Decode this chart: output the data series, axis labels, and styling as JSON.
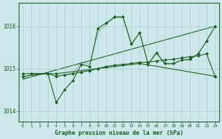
{
  "title": "Graphe pression niveau de la mer (hPa)",
  "bg_color": "#cce8ea",
  "grid_color": "#aacccc",
  "line_color": "#1a5c1a",
  "xlim": [
    -0.5,
    23.5
  ],
  "ylim": [
    1013.75,
    1016.55
  ],
  "yticks": [
    1014,
    1015,
    1016
  ],
  "xticks": [
    0,
    1,
    2,
    3,
    4,
    5,
    6,
    7,
    8,
    9,
    10,
    11,
    12,
    13,
    14,
    15,
    16,
    17,
    18,
    19,
    20,
    21,
    22,
    23
  ],
  "series_dotted": {
    "x": [
      0,
      1,
      2,
      3,
      4,
      5,
      6,
      7,
      8,
      9,
      10,
      11,
      12,
      13,
      14,
      15,
      16,
      17,
      18,
      19,
      20,
      21,
      22,
      23
    ],
    "y": [
      1014.75,
      1014.88,
      1014.88,
      1014.88,
      1014.82,
      1014.85,
      1014.9,
      1015.15,
      1015.1,
      1015.85,
      1016.05,
      1016.2,
      1016.2,
      1015.55,
      1015.85,
      1015.1,
      1015.35,
      1015.1,
      1015.1,
      1015.2,
      1015.2,
      1015.35,
      1015.65,
      1016.0
    ]
  },
  "series_main": {
    "x": [
      1,
      3,
      4,
      5,
      6,
      7,
      8,
      9,
      10,
      11,
      12,
      13,
      14,
      15,
      16,
      17,
      18,
      19,
      20,
      21,
      22,
      23
    ],
    "y": [
      1014.88,
      1014.88,
      1014.2,
      1014.5,
      1014.72,
      1015.1,
      1015.05,
      1015.95,
      1016.08,
      1016.22,
      1016.22,
      1015.58,
      1015.85,
      1015.1,
      1015.38,
      1015.12,
      1015.12,
      1015.2,
      1015.22,
      1015.35,
      1015.65,
      1016.0
    ]
  },
  "series_diagonal": {
    "x": [
      0,
      23
    ],
    "y": [
      1014.75,
      1016.0
    ]
  },
  "series_lower": {
    "x": [
      0,
      3,
      4,
      5,
      6,
      7,
      8,
      9,
      10,
      11,
      12,
      13,
      14,
      15,
      16,
      17,
      18,
      19,
      20,
      21,
      22,
      23
    ],
    "y": [
      1014.82,
      1014.88,
      1014.82,
      1014.85,
      1014.88,
      1014.92,
      1014.95,
      1015.0,
      1015.05,
      1015.08,
      1015.1,
      1015.12,
      1015.15,
      1015.15,
      1015.18,
      1015.2,
      1015.22,
      1015.25,
      1015.28,
      1015.3,
      1015.35,
      1014.82
    ]
  },
  "series_flat": {
    "x": [
      0,
      4,
      14,
      23
    ],
    "y": [
      1014.88,
      1014.88,
      1015.12,
      1014.82
    ]
  }
}
